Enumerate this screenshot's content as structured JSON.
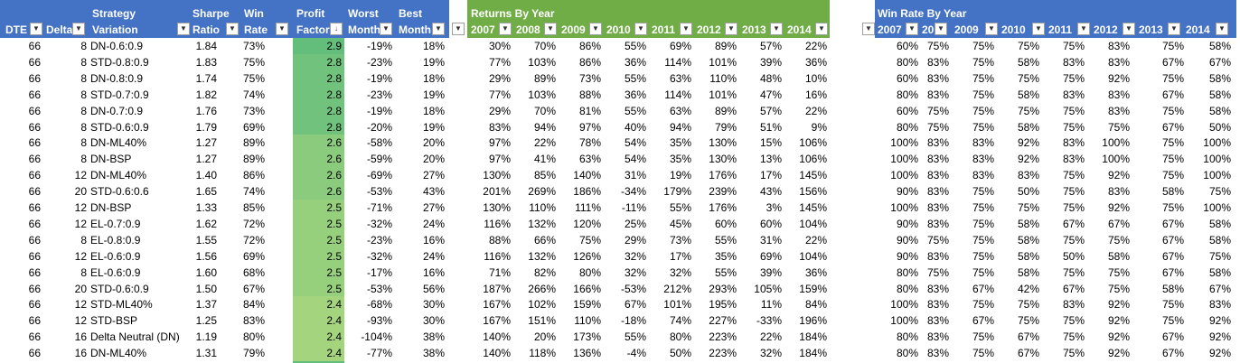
{
  "left_table": {
    "headers": [
      [
        "DTE"
      ],
      [
        "Delta"
      ],
      [
        "Strategy",
        "Variation"
      ],
      [
        "Sharpe",
        "Ratio"
      ],
      [
        "Win",
        "Rate"
      ],
      [
        "Profit",
        "Factor"
      ],
      [
        "Worst",
        "Month"
      ],
      [
        "Best",
        "Month"
      ]
    ],
    "rows": [
      [
        "66",
        "8",
        "DN-0.6:0.9",
        "1.84",
        "73%",
        "2.9",
        "-19%",
        "18%"
      ],
      [
        "66",
        "8",
        "STD-0.8:0.9",
        "1.83",
        "75%",
        "2.8",
        "-23%",
        "19%"
      ],
      [
        "66",
        "8",
        "DN-0.8:0.9",
        "1.74",
        "75%",
        "2.8",
        "-19%",
        "18%"
      ],
      [
        "66",
        "8",
        "STD-0.7:0.9",
        "1.82",
        "74%",
        "2.8",
        "-23%",
        "19%"
      ],
      [
        "66",
        "8",
        "DN-0.7:0.9",
        "1.76",
        "73%",
        "2.8",
        "-19%",
        "18%"
      ],
      [
        "66",
        "8",
        "STD-0.6:0.9",
        "1.79",
        "69%",
        "2.8",
        "-20%",
        "19%"
      ],
      [
        "66",
        "8",
        "DN-ML40%",
        "1.27",
        "89%",
        "2.6",
        "-58%",
        "20%"
      ],
      [
        "66",
        "8",
        "DN-BSP",
        "1.27",
        "89%",
        "2.6",
        "-59%",
        "20%"
      ],
      [
        "66",
        "12",
        "DN-ML40%",
        "1.40",
        "86%",
        "2.6",
        "-69%",
        "27%"
      ],
      [
        "66",
        "20",
        "STD-0.6:0.6",
        "1.65",
        "74%",
        "2.6",
        "-53%",
        "43%"
      ],
      [
        "66",
        "12",
        "DN-BSP",
        "1.33",
        "85%",
        "2.5",
        "-71%",
        "27%"
      ],
      [
        "66",
        "12",
        "EL-0.7:0.9",
        "1.62",
        "72%",
        "2.5",
        "-32%",
        "24%"
      ],
      [
        "66",
        "8",
        "EL-0.8:0.9",
        "1.55",
        "72%",
        "2.5",
        "-23%",
        "16%"
      ],
      [
        "66",
        "12",
        "EL-0.6:0.9",
        "1.56",
        "69%",
        "2.5",
        "-32%",
        "24%"
      ],
      [
        "66",
        "8",
        "EL-0.6:0.9",
        "1.60",
        "68%",
        "2.5",
        "-17%",
        "16%"
      ],
      [
        "66",
        "20",
        "STD-0.6:0.9",
        "1.50",
        "67%",
        "2.5",
        "-53%",
        "56%"
      ],
      [
        "66",
        "12",
        "STD-ML40%",
        "1.37",
        "84%",
        "2.4",
        "-68%",
        "30%"
      ],
      [
        "66",
        "12",
        "STD-BSP",
        "1.25",
        "83%",
        "2.4",
        "-93%",
        "30%"
      ],
      [
        "66",
        "16",
        "Delta Neutral (DN)",
        "1.19",
        "80%",
        "2.4",
        "-104%",
        "38%"
      ],
      [
        "66",
        "16",
        "DN-ML40%",
        "1.31",
        "79%",
        "2.4",
        "-77%",
        "38%"
      ]
    ]
  },
  "returns_by_year": {
    "title": "Returns By Year",
    "headers": [
      "2007",
      "2008",
      "2009",
      "2010",
      "2011",
      "2012",
      "2013",
      "2014"
    ],
    "rows": [
      [
        "30%",
        "70%",
        "86%",
        "55%",
        "69%",
        "89%",
        "57%",
        "22%"
      ],
      [
        "77%",
        "103%",
        "86%",
        "36%",
        "114%",
        "101%",
        "39%",
        "36%"
      ],
      [
        "29%",
        "89%",
        "73%",
        "55%",
        "63%",
        "110%",
        "48%",
        "10%"
      ],
      [
        "77%",
        "103%",
        "88%",
        "36%",
        "114%",
        "101%",
        "47%",
        "16%"
      ],
      [
        "29%",
        "70%",
        "81%",
        "55%",
        "63%",
        "89%",
        "57%",
        "22%"
      ],
      [
        "83%",
        "94%",
        "97%",
        "40%",
        "94%",
        "79%",
        "51%",
        "9%"
      ],
      [
        "97%",
        "22%",
        "78%",
        "54%",
        "35%",
        "130%",
        "15%",
        "106%"
      ],
      [
        "97%",
        "41%",
        "63%",
        "54%",
        "35%",
        "130%",
        "13%",
        "106%"
      ],
      [
        "130%",
        "85%",
        "140%",
        "31%",
        "19%",
        "176%",
        "17%",
        "145%"
      ],
      [
        "201%",
        "269%",
        "186%",
        "-34%",
        "179%",
        "239%",
        "43%",
        "156%"
      ],
      [
        "130%",
        "110%",
        "111%",
        "-11%",
        "55%",
        "176%",
        "3%",
        "145%"
      ],
      [
        "116%",
        "132%",
        "120%",
        "25%",
        "45%",
        "60%",
        "60%",
        "104%"
      ],
      [
        "88%",
        "66%",
        "75%",
        "29%",
        "73%",
        "55%",
        "31%",
        "22%"
      ],
      [
        "116%",
        "132%",
        "126%",
        "32%",
        "17%",
        "35%",
        "69%",
        "104%"
      ],
      [
        "71%",
        "82%",
        "80%",
        "32%",
        "32%",
        "55%",
        "39%",
        "36%"
      ],
      [
        "187%",
        "266%",
        "166%",
        "-53%",
        "212%",
        "293%",
        "105%",
        "159%"
      ],
      [
        "167%",
        "102%",
        "159%",
        "67%",
        "101%",
        "195%",
        "11%",
        "84%"
      ],
      [
        "167%",
        "151%",
        "110%",
        "-18%",
        "74%",
        "227%",
        "-33%",
        "196%"
      ],
      [
        "140%",
        "20%",
        "173%",
        "55%",
        "80%",
        "223%",
        "22%",
        "184%"
      ],
      [
        "140%",
        "118%",
        "136%",
        "-4%",
        "50%",
        "223%",
        "32%",
        "184%"
      ]
    ]
  },
  "win_rate_by_year": {
    "title": "Win Rate By Year",
    "headers": [
      "2007",
      "20",
      "2009",
      "2010",
      "2011",
      "2012",
      "2013",
      "2014"
    ],
    "rows": [
      [
        "60%",
        "75%",
        "75%",
        "75%",
        "75%",
        "83%",
        "75%",
        "58%"
      ],
      [
        "80%",
        "83%",
        "75%",
        "58%",
        "83%",
        "83%",
        "67%",
        "67%"
      ],
      [
        "60%",
        "83%",
        "75%",
        "75%",
        "75%",
        "92%",
        "75%",
        "58%"
      ],
      [
        "80%",
        "83%",
        "75%",
        "58%",
        "83%",
        "83%",
        "67%",
        "58%"
      ],
      [
        "60%",
        "75%",
        "75%",
        "75%",
        "75%",
        "83%",
        "75%",
        "58%"
      ],
      [
        "80%",
        "75%",
        "75%",
        "58%",
        "75%",
        "75%",
        "67%",
        "50%"
      ],
      [
        "100%",
        "83%",
        "83%",
        "92%",
        "83%",
        "100%",
        "75%",
        "100%"
      ],
      [
        "100%",
        "83%",
        "83%",
        "92%",
        "83%",
        "100%",
        "75%",
        "100%"
      ],
      [
        "100%",
        "83%",
        "83%",
        "83%",
        "75%",
        "92%",
        "75%",
        "100%"
      ],
      [
        "90%",
        "83%",
        "75%",
        "50%",
        "75%",
        "83%",
        "58%",
        "75%"
      ],
      [
        "100%",
        "83%",
        "75%",
        "75%",
        "75%",
        "92%",
        "75%",
        "100%"
      ],
      [
        "90%",
        "83%",
        "75%",
        "58%",
        "67%",
        "67%",
        "67%",
        "58%"
      ],
      [
        "90%",
        "75%",
        "75%",
        "58%",
        "75%",
        "75%",
        "67%",
        "58%"
      ],
      [
        "90%",
        "83%",
        "75%",
        "58%",
        "50%",
        "58%",
        "67%",
        "75%"
      ],
      [
        "80%",
        "75%",
        "75%",
        "58%",
        "75%",
        "75%",
        "67%",
        "58%"
      ],
      [
        "80%",
        "83%",
        "67%",
        "42%",
        "67%",
        "75%",
        "58%",
        "67%"
      ],
      [
        "100%",
        "83%",
        "75%",
        "75%",
        "83%",
        "92%",
        "75%",
        "83%"
      ],
      [
        "100%",
        "83%",
        "67%",
        "75%",
        "75%",
        "92%",
        "75%",
        "92%"
      ],
      [
        "80%",
        "83%",
        "75%",
        "67%",
        "75%",
        "92%",
        "67%",
        "92%"
      ],
      [
        "80%",
        "83%",
        "75%",
        "67%",
        "75%",
        "92%",
        "67%",
        "92%"
      ]
    ]
  }
}
